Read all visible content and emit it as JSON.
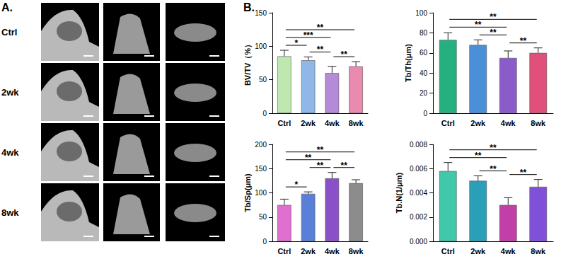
{
  "panel_a": {
    "label": "A.",
    "rows": [
      "Ctrl",
      "2wk",
      "4wk",
      "8wk"
    ]
  },
  "panel_b": {
    "label": "B."
  },
  "chart_data": [
    {
      "type": "bar",
      "y_label": "BV/TV（%）",
      "categories": [
        "Ctrl",
        "2wk",
        "4wk",
        "8wk"
      ],
      "values": [
        85,
        79,
        60,
        70
      ],
      "errors": [
        9,
        5,
        10,
        7
      ],
      "colors": [
        "#bfe8b0",
        "#8fb8e8",
        "#b58ad8",
        "#e98aae"
      ],
      "ylim": [
        0,
        150
      ],
      "yticks": [
        0,
        50,
        100,
        150
      ],
      "grid": false,
      "significance": [
        {
          "from": "Ctrl",
          "to": "8wk",
          "label": "**"
        },
        {
          "from": "Ctrl",
          "to": "4wk",
          "label": "***"
        },
        {
          "from": "Ctrl",
          "to": "2wk",
          "label": "*"
        },
        {
          "from": "2wk",
          "to": "4wk",
          "label": "**"
        },
        {
          "from": "4wk",
          "to": "8wk",
          "label": "**"
        }
      ]
    },
    {
      "type": "bar",
      "y_label": "Tb/Th(μm)",
      "categories": [
        "Ctrl",
        "2wk",
        "4wk",
        "8wk"
      ],
      "values": [
        73,
        68,
        55,
        60
      ],
      "errors": [
        7,
        5,
        7,
        5
      ],
      "colors": [
        "#27b07f",
        "#4a90d9",
        "#8a5cc9",
        "#e0507a"
      ],
      "ylim": [
        0,
        100
      ],
      "yticks": [
        0,
        20,
        40,
        60,
        80,
        100
      ],
      "grid": false,
      "significance": [
        {
          "from": "Ctrl",
          "to": "8wk",
          "label": "**"
        },
        {
          "from": "Ctrl",
          "to": "4wk",
          "label": "**"
        },
        {
          "from": "2wk",
          "to": "4wk",
          "label": "**"
        },
        {
          "from": "4wk",
          "to": "8wk",
          "label": "**"
        }
      ]
    },
    {
      "type": "bar",
      "y_label": "Tb/Sp(μm)",
      "categories": [
        "Ctrl",
        "2wk",
        "4wk",
        "8wk"
      ],
      "values": [
        75,
        98,
        130,
        120
      ],
      "errors": [
        12,
        4,
        12,
        7
      ],
      "colors": [
        "#e070d0",
        "#5a7fd8",
        "#8a50c8",
        "#8c8c8c"
      ],
      "ylim": [
        0,
        200
      ],
      "yticks": [
        0,
        50,
        100,
        150,
        200
      ],
      "grid": false,
      "significance": [
        {
          "from": "Ctrl",
          "to": "8wk",
          "label": "**"
        },
        {
          "from": "Ctrl",
          "to": "4wk",
          "label": "**"
        },
        {
          "from": "2wk",
          "to": "4wk",
          "label": "**"
        },
        {
          "from": "4wk",
          "to": "8wk",
          "label": "**"
        },
        {
          "from": "Ctrl",
          "to": "2wk",
          "label": "*"
        }
      ]
    },
    {
      "type": "bar",
      "y_label": "Tb.N(1/μm)",
      "categories": [
        "Ctrl",
        "2wk",
        "4wk",
        "8wk"
      ],
      "values": [
        0.0058,
        0.005,
        0.003,
        0.0045
      ],
      "errors": [
        0.0007,
        0.0004,
        0.0006,
        0.0006
      ],
      "colors": [
        "#40c8a8",
        "#2aa0b8",
        "#c040a8",
        "#8050d8"
      ],
      "ylim": [
        0,
        0.008
      ],
      "yticks": [
        {
          "value": 0,
          "label": "0.000"
        },
        {
          "value": 0.002,
          "label": "0.002"
        },
        {
          "value": 0.004,
          "label": "0.004"
        },
        {
          "value": 0.006,
          "label": "0.006"
        },
        {
          "value": 0.008,
          "label": "0.008"
        }
      ],
      "grid": false,
      "significance": [
        {
          "from": "Ctrl",
          "to": "8wk",
          "label": "**"
        },
        {
          "from": "Ctrl",
          "to": "4wk",
          "label": "**"
        },
        {
          "from": "2wk",
          "to": "4wk",
          "label": "**"
        },
        {
          "from": "4wk",
          "to": "8wk",
          "label": "**"
        }
      ]
    }
  ]
}
